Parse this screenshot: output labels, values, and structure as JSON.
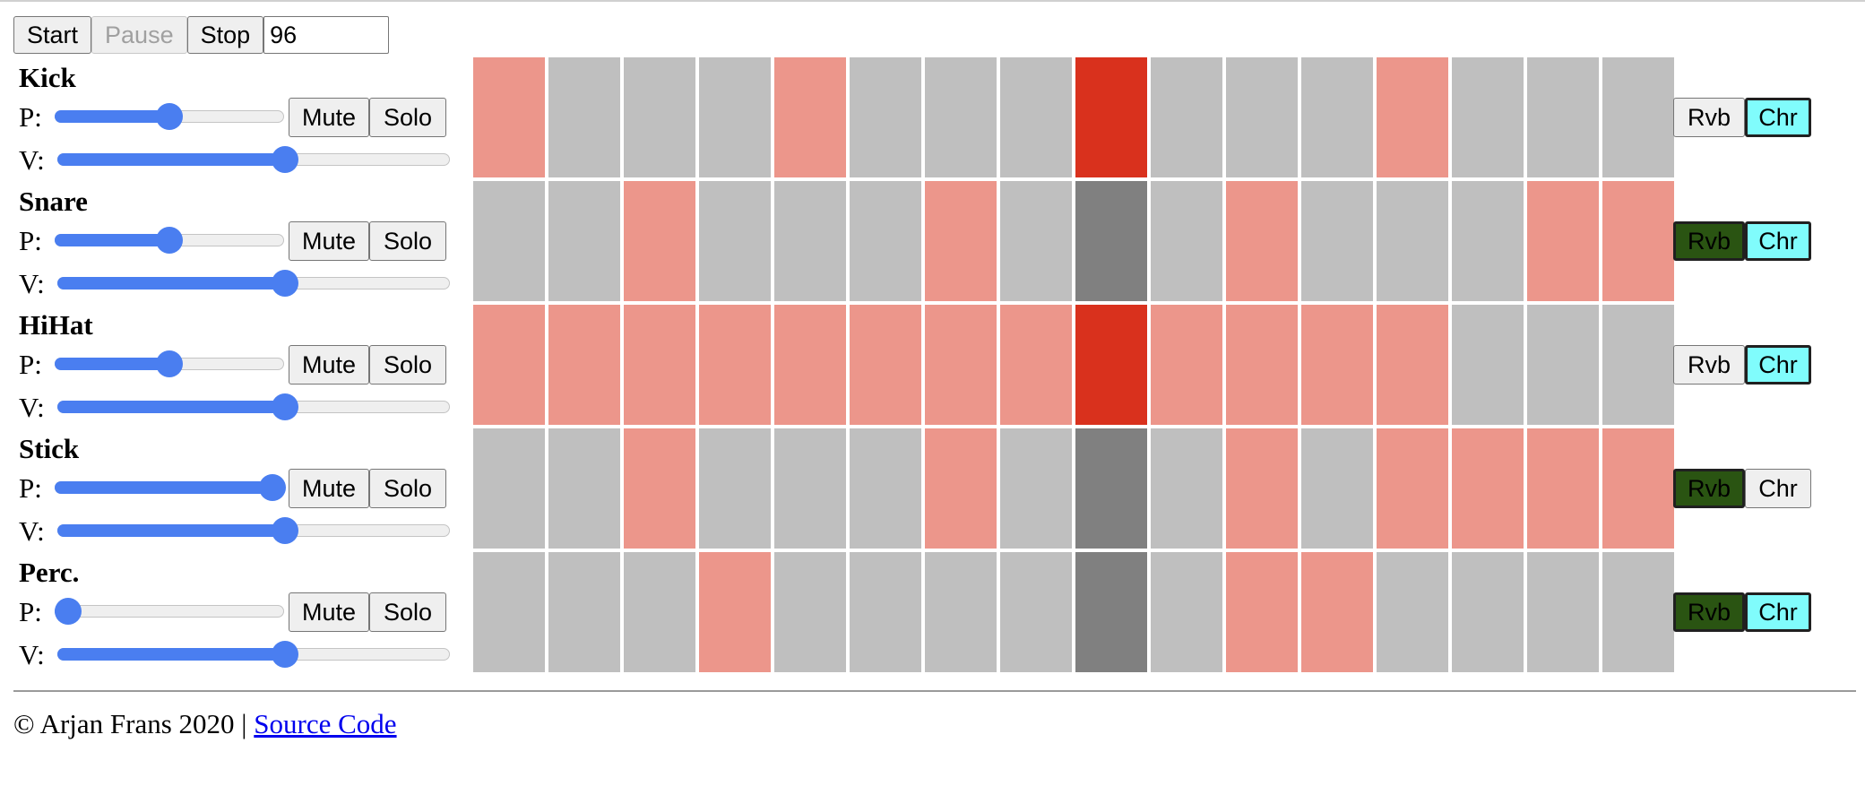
{
  "transport": {
    "start_label": "Start",
    "pause_label": "Pause",
    "stop_label": "Stop",
    "tempo_value": "96"
  },
  "labels": {
    "pan": "P:",
    "volume": "V:",
    "mute": "Mute",
    "solo": "Solo",
    "reverb": "Rvb",
    "chorus": "Chr"
  },
  "current_step": 8,
  "colors": {
    "step_off": "#bfbfbf",
    "step_on": "#ec968b",
    "step_current": "#808080",
    "step_current_on": "#d9311d",
    "slider": "#4a7ef0",
    "reverb_active": "#2a5412",
    "chorus_active": "#80fcfc"
  },
  "tracks": [
    {
      "name": "Kick",
      "pan": 0.5,
      "volume": 0.58,
      "reverb": false,
      "chorus": true,
      "steps": [
        1,
        0,
        0,
        0,
        1,
        0,
        0,
        0,
        1,
        0,
        0,
        0,
        1,
        0,
        0,
        0
      ]
    },
    {
      "name": "Snare",
      "pan": 0.5,
      "volume": 0.58,
      "reverb": true,
      "chorus": true,
      "steps": [
        0,
        0,
        1,
        0,
        0,
        0,
        1,
        0,
        0,
        0,
        1,
        0,
        0,
        0,
        1,
        1
      ]
    },
    {
      "name": "HiHat",
      "pan": 0.5,
      "volume": 0.58,
      "reverb": false,
      "chorus": true,
      "steps": [
        1,
        1,
        1,
        1,
        1,
        1,
        1,
        1,
        1,
        1,
        1,
        1,
        1,
        0,
        0,
        0
      ]
    },
    {
      "name": "Stick",
      "pan": 0.95,
      "volume": 0.58,
      "reverb": true,
      "chorus": false,
      "steps": [
        0,
        0,
        1,
        0,
        0,
        0,
        1,
        0,
        0,
        0,
        1,
        0,
        1,
        1,
        1,
        1
      ]
    },
    {
      "name": "Perc.",
      "pan": 0.06,
      "volume": 0.58,
      "reverb": true,
      "chorus": true,
      "steps": [
        0,
        0,
        0,
        1,
        0,
        0,
        0,
        0,
        0,
        0,
        1,
        1,
        0,
        0,
        0,
        0
      ]
    }
  ],
  "footer": {
    "text": "© Arjan Frans 2020 | ",
    "link_label": "Source Code"
  }
}
